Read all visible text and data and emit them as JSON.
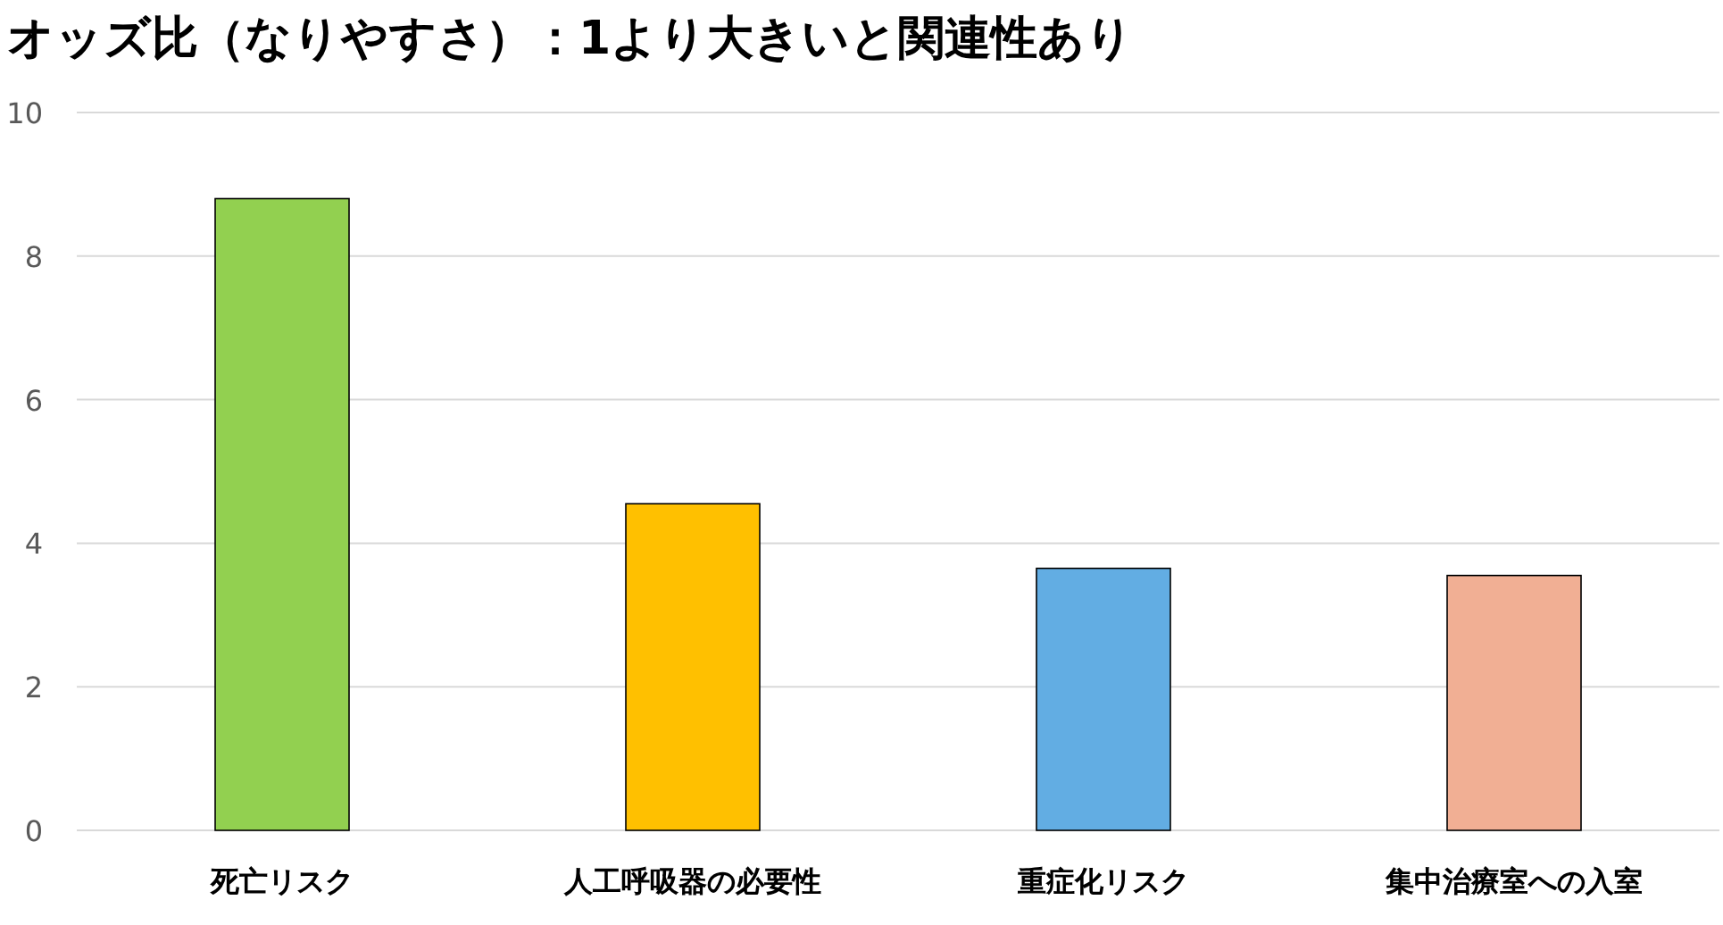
{
  "chart_data": {
    "type": "bar",
    "title": "オッズ比（なりやすさ）：1より大きいと関連性あり",
    "categories": [
      "死亡リスク",
      "人工呼吸器の必要性",
      "重症化リスク",
      "集中治療室への入室"
    ],
    "values": [
      8.8,
      4.55,
      3.65,
      3.55
    ],
    "colors": [
      "#92d050",
      "#ffc000",
      "#62ade3",
      "#f1af94"
    ],
    "ylim": [
      0,
      10
    ],
    "yticks": [
      0,
      2,
      4,
      6,
      8,
      10
    ],
    "grid": "y"
  }
}
